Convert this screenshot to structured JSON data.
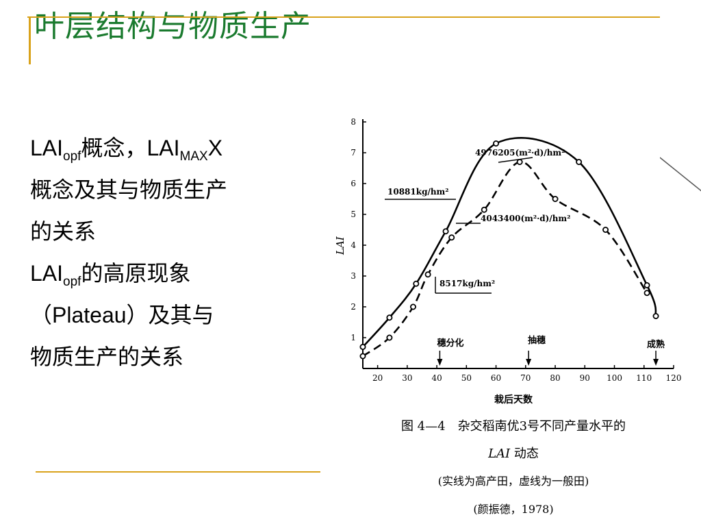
{
  "slide": {
    "title": "叶层结构与物质生产",
    "colors": {
      "title": "#1a7a2e",
      "rule": "#d9a21b"
    }
  },
  "text": {
    "l1_a": "LAI",
    "l1_a_sub": "opf",
    "l1_b": "概念，LAI",
    "l1_b_sub": "MAX",
    "l1_c": "X",
    "l2": "概念及其与物质生产",
    "l3": "的关系",
    "l4_a": "LAI",
    "l4_a_sub": "opf",
    "l4_b": "的高原现象",
    "l5": "（Plateau）及其与",
    "l6": "物质生产的关系"
  },
  "figure": {
    "caption1_num": "图 4—4",
    "caption1_text": "杂交稻南优3号不同产量水平的",
    "caption2_ital": "LAI",
    "caption2_text": " 动态",
    "caption3": "(实线为高产田，虚线为一般田)",
    "caption4": "(颜振德，1978)"
  },
  "chart_data": {
    "type": "line",
    "xlabel": "栽后天数",
    "ylabel": "LAI",
    "xlim": [
      15,
      120
    ],
    "ylim": [
      0,
      8
    ],
    "xticks": [
      20,
      30,
      40,
      50,
      60,
      70,
      80,
      90,
      100,
      110,
      120
    ],
    "yticks": [
      1,
      2,
      3,
      4,
      5,
      6,
      7,
      8
    ],
    "series": [
      {
        "style": "solid",
        "x": [
          15,
          24,
          33,
          43,
          60,
          88,
          111,
          114
        ],
        "y": [
          0.7,
          1.65,
          2.75,
          4.45,
          7.3,
          6.7,
          2.7,
          1.7
        ]
      },
      {
        "style": "dashed",
        "x": [
          15,
          24,
          32,
          37,
          45,
          56,
          68,
          80,
          97,
          111
        ],
        "y": [
          0.4,
          1.0,
          2.0,
          3.05,
          4.25,
          5.15,
          6.7,
          5.5,
          4.5,
          2.45
        ]
      }
    ],
    "annotations": [
      "4976205(m²·d)/hm²",
      "10881kg/hm²",
      "4043400(m²·d)/hm²",
      "8517kg/hm²"
    ],
    "markers": [
      "穗分化",
      "抽穗",
      "成熟"
    ]
  }
}
